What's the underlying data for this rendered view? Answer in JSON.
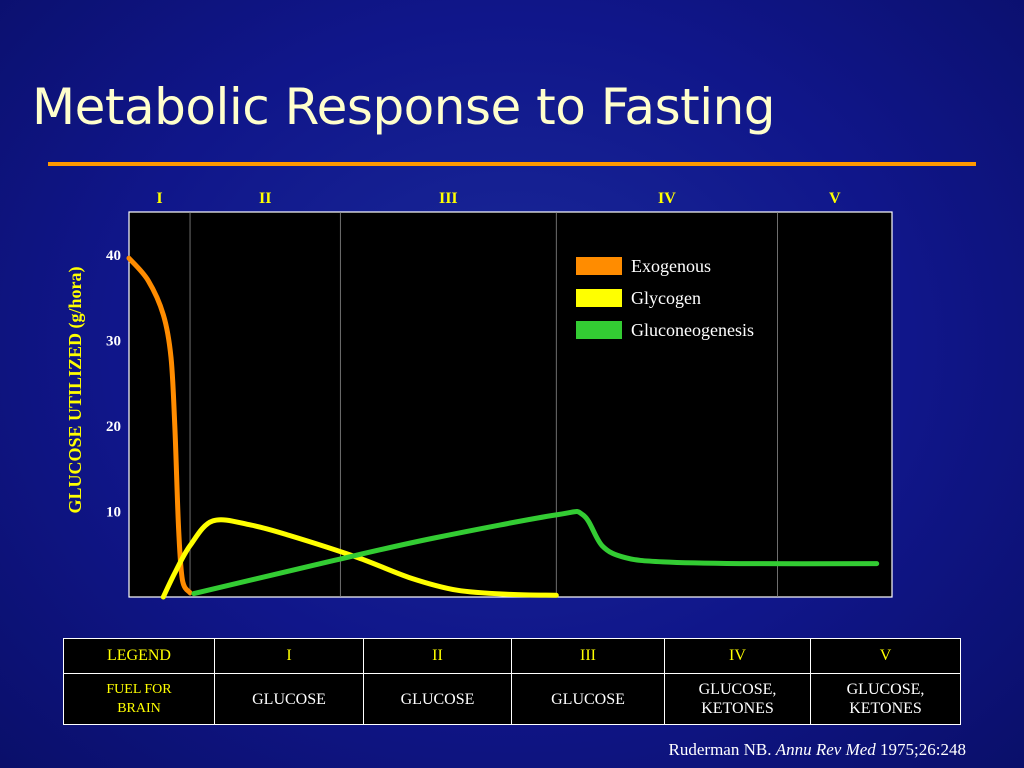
{
  "slide": {
    "title": "Metabolic Response to Fasting",
    "citation_author": "Ruderman NB.",
    "citation_journal": "Annu Rev Med",
    "citation_ref": "1975;26:248"
  },
  "colors": {
    "exogenous": "#ff8c00",
    "glycogen": "#ffff00",
    "gluconeogenesis": "#33cc33",
    "title_rule": "#ff9900",
    "phase_label": "#ffff00"
  },
  "chart_data": {
    "type": "line",
    "title": "",
    "ylabel": "GLUCOSE UTILIZED  (g/hora)",
    "xlabel": "",
    "y_ticks": [
      10,
      20,
      30,
      40
    ],
    "ylim": [
      0,
      45
    ],
    "xlim": [
      0,
      10
    ],
    "phases": [
      {
        "label": "I",
        "start": 0.0,
        "end": 0.8
      },
      {
        "label": "II",
        "start": 0.8,
        "end": 2.77
      },
      {
        "label": "III",
        "start": 2.77,
        "end": 5.6
      },
      {
        "label": "IV",
        "start": 5.6,
        "end": 8.5
      },
      {
        "label": "V",
        "start": 8.5,
        "end": 10.0
      }
    ],
    "legend_position": "top-right",
    "series": [
      {
        "name": "Exogenous",
        "color_key": "exogenous",
        "points": [
          [
            0.0,
            39.6
          ],
          [
            0.25,
            37.0
          ],
          [
            0.45,
            33.0
          ],
          [
            0.55,
            28.0
          ],
          [
            0.6,
            20.0
          ],
          [
            0.65,
            8.0
          ],
          [
            0.7,
            2.0
          ],
          [
            0.8,
            0.5
          ]
        ]
      },
      {
        "name": "Glycogen",
        "color_key": "glycogen",
        "points": [
          [
            0.45,
            0.0
          ],
          [
            0.6,
            2.8
          ],
          [
            0.8,
            6.0
          ],
          [
            1.1,
            8.9
          ],
          [
            1.6,
            8.4
          ],
          [
            2.1,
            7.2
          ],
          [
            3.0,
            4.6
          ],
          [
            3.7,
            2.2
          ],
          [
            4.3,
            0.8
          ],
          [
            5.0,
            0.3
          ],
          [
            5.6,
            0.2
          ]
        ]
      },
      {
        "name": "Gluconeogenesis",
        "color_key": "gluconeogenesis",
        "points": [
          [
            0.85,
            0.4
          ],
          [
            2.7,
            4.3
          ],
          [
            4.0,
            6.9
          ],
          [
            5.6,
            9.6
          ],
          [
            5.95,
            9.6
          ],
          [
            6.2,
            6.0
          ],
          [
            6.5,
            4.6
          ],
          [
            7.0,
            4.1
          ],
          [
            8.0,
            3.9
          ],
          [
            9.8,
            3.9
          ]
        ]
      }
    ]
  },
  "fuel_table": {
    "header": [
      "LEGEND",
      "I",
      "II",
      "III",
      "IV",
      "V"
    ],
    "row_label_line1": "FUEL FOR",
    "row_label_line2": "BRAIN",
    "fuels": [
      {
        "line1": "GLUCOSE",
        "line2": ""
      },
      {
        "line1": "GLUCOSE",
        "line2": ""
      },
      {
        "line1": "GLUCOSE",
        "line2": ""
      },
      {
        "line1": "GLUCOSE,",
        "line2": "KETONES"
      },
      {
        "line1": "GLUCOSE,",
        "line2": "KETONES"
      }
    ]
  }
}
